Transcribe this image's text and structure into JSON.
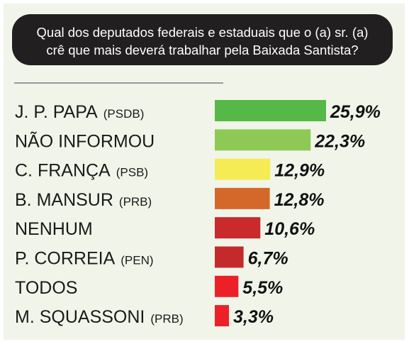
{
  "question": {
    "text": "Qual dos deputados federais e estaduais que o (a) sr. (a)\ncrê que mais deverá trabalhar pela Baixada Santista?"
  },
  "chart_data": {
    "type": "bar",
    "orientation": "horizontal",
    "title": "Qual dos deputados federais e estaduais que o (a) sr. (a) crê que mais deverá trabalhar pela Baixada Santista?",
    "categories": [
      {
        "name": "J. P. PAPA",
        "party": "(PSDB)"
      },
      {
        "name": "NÃO INFORMOU",
        "party": ""
      },
      {
        "name": "C. FRANÇA",
        "party": "(PSB)"
      },
      {
        "name": "B. MANSUR",
        "party": "(PRB)"
      },
      {
        "name": "NENHUM",
        "party": ""
      },
      {
        "name": "P. CORREIA",
        "party": "(PEN)"
      },
      {
        "name": "TODOS",
        "party": ""
      },
      {
        "name": "M. SQUASSONI",
        "party": "(PRB)"
      }
    ],
    "values": [
      25.9,
      22.3,
      12.9,
      12.8,
      10.6,
      6.7,
      5.5,
      3.3
    ],
    "value_labels": [
      "25,9%",
      "22,3%",
      "12,9%",
      "12,8%",
      "10,6%",
      "6,7%",
      "5,5%",
      "3,3%"
    ],
    "colors": [
      "#56b847",
      "#8ec955",
      "#f5ec55",
      "#d4682b",
      "#c92a2b",
      "#c42a2b",
      "#ec2128",
      "#ec2128"
    ],
    "unit": "%",
    "xlim": [
      0,
      25.9
    ],
    "grid": false,
    "legend": "none"
  }
}
